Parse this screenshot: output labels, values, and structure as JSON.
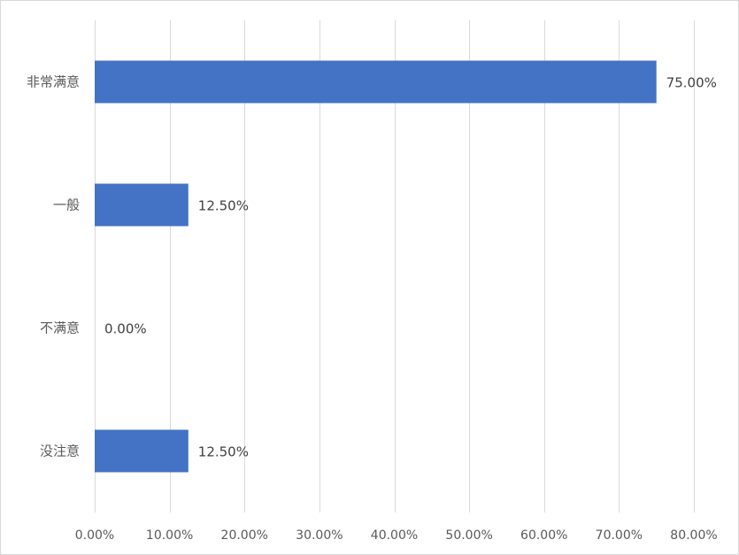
{
  "chart_data": {
    "type": "bar",
    "orientation": "horizontal",
    "categories": [
      "非常满意",
      "一般",
      "不满意",
      "没注意"
    ],
    "values": [
      75.0,
      12.5,
      0.0,
      12.5
    ],
    "value_labels": [
      "75.00%",
      "12.50%",
      "0.00%",
      "12.50%"
    ],
    "xlim": [
      0,
      80
    ],
    "x_ticks": [
      0,
      10,
      20,
      30,
      40,
      50,
      60,
      70,
      80
    ],
    "x_tick_labels": [
      "0.00%",
      "10.00%",
      "20.00%",
      "30.00%",
      "40.00%",
      "50.00%",
      "60.00%",
      "70.00%",
      "80.00%"
    ],
    "grid": "vertical",
    "legend": "none",
    "bar_color": "#4472C4"
  }
}
